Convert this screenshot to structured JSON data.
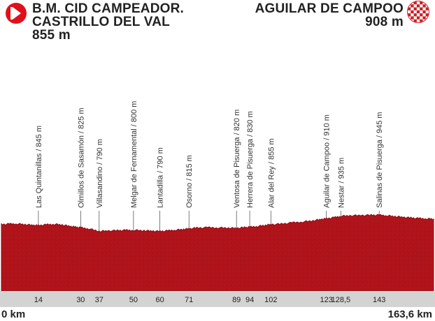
{
  "start": {
    "line1": "B.M. CID CAMPEADOR.",
    "line2": "CASTRILLO DEL VAL",
    "altitude": "855 m",
    "icon": "start-arrow-icon"
  },
  "finish": {
    "name": "AGUILAR DE CAMPOO",
    "altitude": "908 m",
    "icon": "checkered-flag-icon"
  },
  "colors": {
    "profile_fill": "#b3141b",
    "profile_dark": "#7d0b10",
    "km_band": "#d3d3d3",
    "brand_red": "#e0101b"
  },
  "points_of_interest": [
    {
      "km": 14,
      "label": "Las Quintanillas / 845 m"
    },
    {
      "km": 30,
      "label": "Olmillos de Sasamón / 825 m"
    },
    {
      "km": 37,
      "label": "Villasandino / 790 m"
    },
    {
      "km": 50,
      "label": "Melgar de Fernamental / 800 m"
    },
    {
      "km": 60,
      "label": "Lantadilla / 790 m"
    },
    {
      "km": 71,
      "label": "Osorno / 815 m"
    },
    {
      "km": 89,
      "label": "Ventosa de Pisuerga / 820 m"
    },
    {
      "km": 94,
      "label": "Herrera de Pisuerga / 830 m"
    },
    {
      "km": 102,
      "label": "Alar del Rey / 855 m"
    },
    {
      "km": 123,
      "label": "Aguilar de Campoo / 910 m"
    },
    {
      "km": 128.5,
      "label": "Nestar / 935 m"
    },
    {
      "km": 143,
      "label": "Salinas de Pisuerga / 945 m"
    }
  ],
  "km_ticks": [
    "14",
    "30",
    "37",
    "50",
    "60",
    "71",
    "89",
    "94",
    "102",
    "123",
    "128,5",
    "143"
  ],
  "axis": {
    "start_label": "0 km",
    "end_label": "163,6 km",
    "total_km": 163.6
  },
  "elevation_profile": [
    [
      0,
      855
    ],
    [
      3,
      860
    ],
    [
      6,
      862
    ],
    [
      9,
      855
    ],
    [
      12,
      848
    ],
    [
      14,
      845
    ],
    [
      17,
      853
    ],
    [
      20,
      858
    ],
    [
      23,
      852
    ],
    [
      26,
      838
    ],
    [
      28,
      830
    ],
    [
      30,
      825
    ],
    [
      33,
      815
    ],
    [
      37,
      790
    ],
    [
      40,
      795
    ],
    [
      44,
      797
    ],
    [
      47,
      800
    ],
    [
      50,
      800
    ],
    [
      54,
      797
    ],
    [
      57,
      793
    ],
    [
      60,
      790
    ],
    [
      63,
      795
    ],
    [
      66,
      803
    ],
    [
      69,
      809
    ],
    [
      71,
      815
    ],
    [
      74,
      822
    ],
    [
      78,
      826
    ],
    [
      82,
      824
    ],
    [
      86,
      822
    ],
    [
      89,
      820
    ],
    [
      92,
      826
    ],
    [
      94,
      830
    ],
    [
      97,
      838
    ],
    [
      100,
      848
    ],
    [
      102,
      855
    ],
    [
      106,
      860
    ],
    [
      110,
      872
    ],
    [
      114,
      880
    ],
    [
      118,
      892
    ],
    [
      121,
      904
    ],
    [
      123,
      910
    ],
    [
      126,
      922
    ],
    [
      128.5,
      935
    ],
    [
      132,
      940
    ],
    [
      136,
      942
    ],
    [
      140,
      944
    ],
    [
      143,
      945
    ],
    [
      146,
      940
    ],
    [
      149,
      932
    ],
    [
      152,
      925
    ],
    [
      155,
      918
    ],
    [
      158,
      913
    ],
    [
      161,
      910
    ],
    [
      163.6,
      908
    ]
  ]
}
